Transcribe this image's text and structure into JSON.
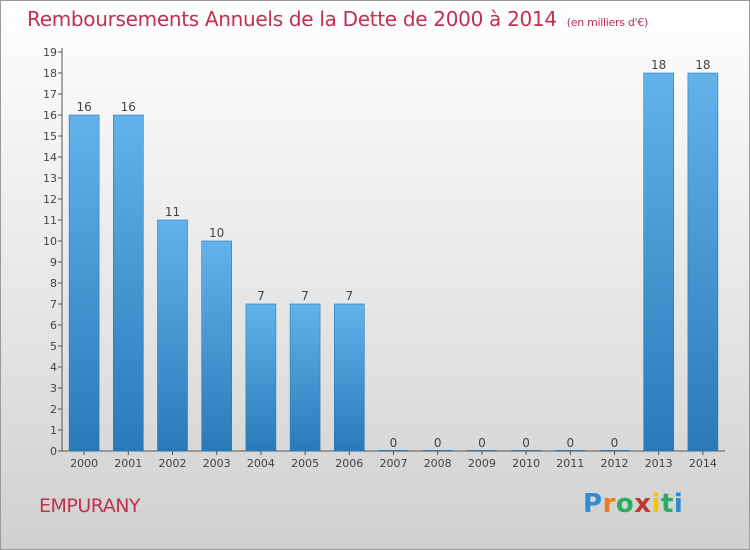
{
  "title": "Remboursements Annuels de la Dette de 2000 à 2014",
  "unit": "(en milliers d'€)",
  "commune": "EMPURANY",
  "logo": {
    "text": "Proxiti",
    "letters": [
      "P",
      "r",
      "o",
      "x",
      "i",
      "t",
      "i"
    ],
    "colors": [
      "#2d8ccf",
      "#e67e22",
      "#27ae60",
      "#c0392b",
      "#f1c40f",
      "#27ae60",
      "#2d8ccf"
    ]
  },
  "colors": {
    "bar_light": "#62b2ec",
    "bar_dark": "#2a7ab8",
    "title": "#c0304f"
  },
  "chart_data": {
    "type": "bar",
    "categories": [
      "2000",
      "2001",
      "2002",
      "2003",
      "2004",
      "2005",
      "2006",
      "2007",
      "2008",
      "2009",
      "2010",
      "2011",
      "2012",
      "2013",
      "2014"
    ],
    "values": [
      16,
      16,
      11,
      10,
      7,
      7,
      7,
      0,
      0,
      0,
      0,
      0,
      0,
      18,
      18
    ],
    "ylim": [
      0,
      19
    ],
    "yticks": [
      0,
      1,
      2,
      3,
      4,
      5,
      6,
      7,
      8,
      9,
      10,
      11,
      12,
      13,
      14,
      15,
      16,
      17,
      18,
      19
    ],
    "grid": false,
    "xlabel": "",
    "ylabel": ""
  }
}
